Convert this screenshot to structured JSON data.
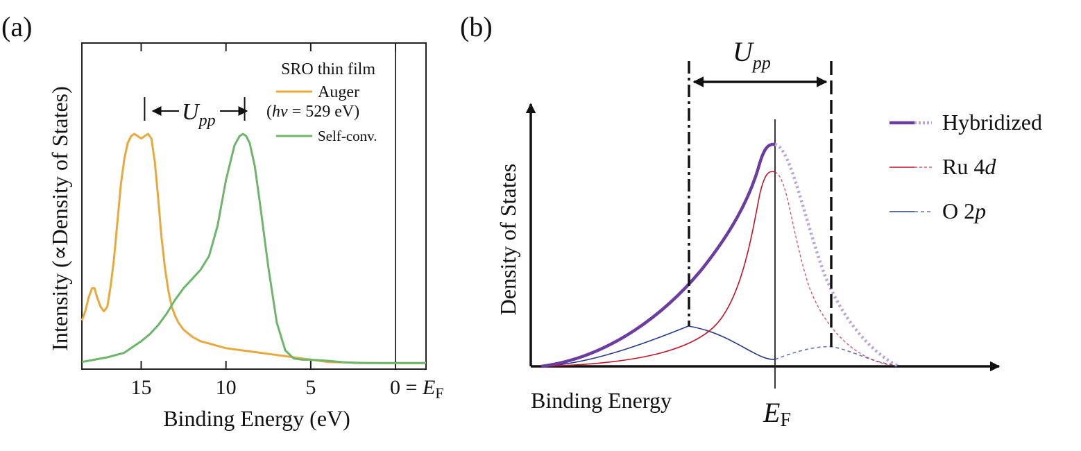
{
  "chart_data": [
    {
      "panel_label": "(a)",
      "type": "line",
      "xlabel": "Binding Energy (eV)",
      "ylabel": "Intensity  (∝Density of States)",
      "x_reversed": true,
      "xlim": [
        18.5,
        -1.8
      ],
      "ylim": [
        0,
        1.0
      ],
      "x_ticks": [
        {
          "value": 15,
          "label": "15"
        },
        {
          "value": 10,
          "label": "10"
        },
        {
          "value": 5,
          "label": "5"
        }
      ],
      "x_end_label": {
        "value": 0,
        "text": "0 = ",
        "symbol": "E",
        "subscript": "F"
      },
      "legend_title": "SRO thin film",
      "legend_position": "top-right",
      "annotation": {
        "symbol": "U",
        "subscript": "pp",
        "from": 14.8,
        "to": 8.9,
        "y": 1.08
      },
      "series": [
        {
          "name": "Auger",
          "name_line2": {
            "prefix": "(",
            "italic": "hν",
            "rest": " = 529 eV)"
          },
          "color": "#e7a93b",
          "x": [
            18.5,
            18.3,
            18.1,
            17.9,
            17.75,
            17.6,
            17.4,
            17.2,
            17.0,
            16.8,
            16.6,
            16.4,
            16.2,
            16.0,
            15.8,
            15.6,
            15.4,
            15.2,
            15.0,
            14.8,
            14.6,
            14.4,
            14.2,
            14.0,
            13.8,
            13.6,
            13.4,
            13.2,
            13.0,
            12.8,
            12.5,
            12.0,
            11.5,
            11.0,
            10.5,
            10.0,
            9.0,
            8.0,
            7.0,
            6.0,
            5.0,
            4.0,
            3.0,
            2.0,
            1.0,
            0.0,
            -1.0,
            -1.8
          ],
          "y": [
            0.19,
            0.23,
            0.29,
            0.33,
            0.33,
            0.29,
            0.25,
            0.23,
            0.25,
            0.34,
            0.46,
            0.62,
            0.78,
            0.89,
            0.96,
            0.99,
            1.0,
            0.99,
            0.98,
            0.99,
            1.0,
            0.98,
            0.88,
            0.72,
            0.55,
            0.42,
            0.32,
            0.25,
            0.21,
            0.18,
            0.15,
            0.12,
            0.1,
            0.09,
            0.08,
            0.07,
            0.06,
            0.05,
            0.04,
            0.03,
            0.02,
            0.01,
            0.008,
            0.006,
            0.005,
            0.005,
            0.005,
            0.005
          ]
        },
        {
          "name": "Self-conv.",
          "color": "#6cb56a",
          "x": [
            18.5,
            17.0,
            16.0,
            15.0,
            14.5,
            14.0,
            13.5,
            13.0,
            12.5,
            12.0,
            11.5,
            11.0,
            10.5,
            10.0,
            9.5,
            9.2,
            9.0,
            8.8,
            8.6,
            8.3,
            8.0,
            7.5,
            7.0,
            6.5,
            6.0,
            5.5,
            5.0,
            4.0,
            3.0,
            2.0,
            1.0,
            0.0,
            -1.8
          ],
          "y": [
            0.01,
            0.03,
            0.05,
            0.1,
            0.13,
            0.17,
            0.22,
            0.28,
            0.33,
            0.37,
            0.41,
            0.47,
            0.6,
            0.8,
            0.95,
            0.99,
            1.0,
            0.99,
            0.96,
            0.86,
            0.7,
            0.42,
            0.18,
            0.06,
            0.025,
            0.02,
            0.02,
            0.015,
            0.008,
            0.005,
            0.005,
            0.005,
            0.005
          ]
        }
      ]
    },
    {
      "panel_label": "(b)",
      "type": "line",
      "ylabel": "Density of States",
      "xlabel": "Binding Energy",
      "schematic": true,
      "x_marker": {
        "symbol": "E",
        "subscript": "F"
      },
      "annotation": {
        "symbol": "U",
        "subscript": "pp"
      },
      "legend_position": "right",
      "series": [
        {
          "name": "Hybridized",
          "color": "#6a3e9e"
        },
        {
          "name": "Ru 4",
          "name_italic": "d",
          "color": "#c0142a"
        },
        {
          "name": "O 2",
          "name_italic": "p",
          "color": "#273a8c"
        }
      ]
    }
  ]
}
